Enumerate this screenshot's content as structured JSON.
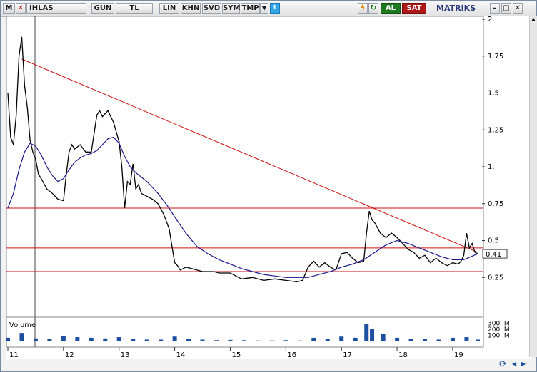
{
  "toolbar": {
    "menu_label": "M",
    "symbol": "IHLAS",
    "period": "GUN",
    "currency": "TL",
    "scale": "LIN",
    "khn": "KHN",
    "svd": "SVD",
    "sym": "SYM",
    "tmp": "TMP",
    "buy": "AL",
    "sell": "SAT",
    "brand": "MATRİKS",
    "buy_color": "#1f7a1f",
    "sell_color": "#b01818",
    "icons": [
      "close-icon",
      "dropdown-icon",
      "twitter-icon",
      "lightning-icon",
      "refresh-icon",
      "minimize-icon",
      "maximize-icon",
      "window-close-icon",
      "scroll-up-icon",
      "scroll-down-icon",
      "scroll-left-icon",
      "scroll-right-icon",
      "refresh-data-icon"
    ]
  },
  "chart_data": {
    "type": "line",
    "symbol": "IHLAS",
    "x_ticks": [
      "11",
      "12",
      "13",
      "14",
      "15",
      "16",
      "17",
      "18",
      "19"
    ],
    "y_ticks": [
      "2.",
      "1.75",
      "1.5",
      "1.25",
      "1.",
      "0.75",
      "0.5",
      "0.25"
    ],
    "ylim": [
      0.0,
      2.0
    ],
    "last_value_label": "0.41",
    "horizontal_lines": [
      0.72,
      0.45,
      0.29
    ],
    "trendline": {
      "from": {
        "x": 11.25,
        "y": 1.73
      },
      "to": {
        "x": 19.45,
        "y": 0.42
      }
    },
    "volume_label": "Volume",
    "volume_ticks": [
      "300. M",
      "200. M",
      "100. M"
    ],
    "volume_ylim": [
      0,
      330
    ],
    "series": [
      {
        "name": "price",
        "color": "#000000",
        "x": [
          11.0,
          11.05,
          11.1,
          11.15,
          11.2,
          11.25,
          11.3,
          11.35,
          11.4,
          11.45,
          11.5,
          11.55,
          11.6,
          11.7,
          11.8,
          11.9,
          12.0,
          12.05,
          12.1,
          12.15,
          12.2,
          12.3,
          12.4,
          12.5,
          12.6,
          12.65,
          12.7,
          12.8,
          12.9,
          13.0,
          13.05,
          13.1,
          13.15,
          13.2,
          13.25,
          13.3,
          13.35,
          13.4,
          13.5,
          13.6,
          13.7,
          13.8,
          13.9,
          14.0,
          14.05,
          14.1,
          14.2,
          14.3,
          14.4,
          14.5,
          14.6,
          14.7,
          14.8,
          14.9,
          15.0,
          15.2,
          15.4,
          15.6,
          15.8,
          16.0,
          16.2,
          16.3,
          16.4,
          16.5,
          16.6,
          16.7,
          16.8,
          16.9,
          17.0,
          17.1,
          17.2,
          17.3,
          17.4,
          17.45,
          17.5,
          17.55,
          17.6,
          17.7,
          17.8,
          17.9,
          18.0,
          18.1,
          18.2,
          18.3,
          18.4,
          18.5,
          18.6,
          18.7,
          18.8,
          18.9,
          19.0,
          19.1,
          19.15,
          19.2,
          19.25,
          19.3,
          19.35,
          19.4,
          19.45
        ],
        "y": [
          1.5,
          1.2,
          1.15,
          1.35,
          1.75,
          1.88,
          1.55,
          1.4,
          1.18,
          1.1,
          1.05,
          0.95,
          0.92,
          0.85,
          0.82,
          0.78,
          0.77,
          0.95,
          1.1,
          1.15,
          1.12,
          1.15,
          1.1,
          1.1,
          1.35,
          1.38,
          1.34,
          1.38,
          1.3,
          1.17,
          1.0,
          0.72,
          0.9,
          0.88,
          1.02,
          0.85,
          0.88,
          0.82,
          0.8,
          0.78,
          0.75,
          0.68,
          0.58,
          0.35,
          0.33,
          0.3,
          0.32,
          0.31,
          0.3,
          0.29,
          0.29,
          0.29,
          0.28,
          0.28,
          0.28,
          0.24,
          0.25,
          0.23,
          0.24,
          0.23,
          0.22,
          0.23,
          0.32,
          0.36,
          0.32,
          0.35,
          0.32,
          0.3,
          0.41,
          0.42,
          0.38,
          0.35,
          0.36,
          0.55,
          0.7,
          0.64,
          0.62,
          0.55,
          0.52,
          0.55,
          0.52,
          0.48,
          0.44,
          0.42,
          0.38,
          0.4,
          0.35,
          0.38,
          0.35,
          0.33,
          0.35,
          0.34,
          0.36,
          0.4,
          0.55,
          0.45,
          0.48,
          0.42,
          0.41
        ]
      },
      {
        "name": "moving average",
        "color": "#1a1a8c",
        "x": [
          11.0,
          11.1,
          11.2,
          11.3,
          11.4,
          11.5,
          11.6,
          11.7,
          11.8,
          11.9,
          12.0,
          12.1,
          12.2,
          12.3,
          12.4,
          12.5,
          12.6,
          12.7,
          12.8,
          12.9,
          13.0,
          13.1,
          13.2,
          13.3,
          13.4,
          13.5,
          13.6,
          13.7,
          13.8,
          13.9,
          14.0,
          14.2,
          14.4,
          14.6,
          14.8,
          15.0,
          15.2,
          15.4,
          15.6,
          15.8,
          16.0,
          16.2,
          16.4,
          16.6,
          16.8,
          17.0,
          17.2,
          17.4,
          17.6,
          17.8,
          18.0,
          18.2,
          18.4,
          18.6,
          18.8,
          19.0,
          19.2,
          19.45
        ],
        "y": [
          0.72,
          0.82,
          0.98,
          1.1,
          1.16,
          1.14,
          1.08,
          1.0,
          0.94,
          0.9,
          0.92,
          0.98,
          1.03,
          1.06,
          1.08,
          1.09,
          1.11,
          1.15,
          1.19,
          1.2,
          1.16,
          1.07,
          1.0,
          0.96,
          0.93,
          0.9,
          0.86,
          0.82,
          0.77,
          0.72,
          0.66,
          0.55,
          0.46,
          0.41,
          0.37,
          0.34,
          0.31,
          0.29,
          0.27,
          0.26,
          0.25,
          0.25,
          0.25,
          0.27,
          0.29,
          0.32,
          0.34,
          0.37,
          0.42,
          0.47,
          0.5,
          0.48,
          0.45,
          0.42,
          0.39,
          0.37,
          0.37,
          0.41
        ]
      },
      {
        "name": "volume",
        "color": "#1c4fa0",
        "x": [
          11.0,
          11.25,
          11.5,
          11.75,
          12.0,
          12.25,
          12.5,
          12.75,
          13.0,
          13.25,
          13.5,
          13.75,
          14.0,
          14.25,
          14.5,
          14.75,
          15.0,
          15.25,
          15.5,
          15.75,
          16.0,
          16.25,
          16.5,
          16.75,
          17.0,
          17.25,
          17.45,
          17.55,
          17.75,
          18.0,
          18.25,
          18.5,
          18.75,
          19.0,
          19.25,
          19.45
        ],
        "y": [
          60,
          140,
          50,
          40,
          90,
          70,
          60,
          50,
          70,
          40,
          30,
          30,
          80,
          40,
          30,
          20,
          25,
          20,
          15,
          15,
          20,
          15,
          60,
          40,
          80,
          60,
          290,
          200,
          120,
          60,
          40,
          40,
          30,
          60,
          70,
          30
        ]
      }
    ]
  }
}
